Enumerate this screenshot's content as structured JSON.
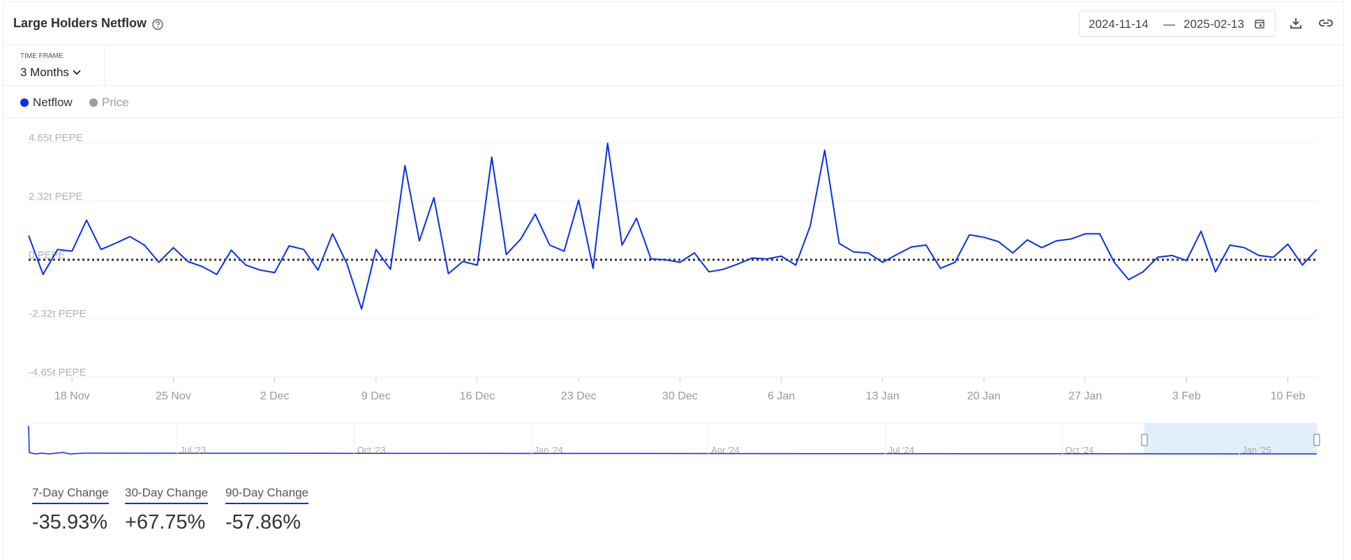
{
  "header": {
    "title": "Large Holders Netflow",
    "date_from": "2024-11-14",
    "date_separator": "—",
    "date_to": "2025-02-13"
  },
  "time_frame": {
    "label": "TIME FRAME",
    "value": "3 Months"
  },
  "chart_data": {
    "type": "line",
    "series": [
      {
        "name": "Netflow",
        "color": "#0a2ee8",
        "values": [
          0.96,
          -0.58,
          0.41,
          0.34,
          1.57,
          0.41,
          0.65,
          0.92,
          0.58,
          -0.1,
          0.48,
          -0.07,
          -0.27,
          -0.58,
          0.38,
          -0.21,
          -0.41,
          -0.51,
          0.55,
          0.41,
          -0.41,
          1.03,
          -0.17,
          -1.95,
          0.41,
          -0.38,
          3.73,
          0.75,
          2.46,
          -0.55,
          -0.07,
          -0.21,
          4.07,
          0.21,
          0.82,
          1.81,
          0.58,
          0.34,
          2.36,
          -0.34,
          4.62,
          0.58,
          1.64,
          0.03,
          0,
          -0.1,
          0.27,
          -0.48,
          -0.38,
          -0.17,
          0.07,
          0.03,
          0.14,
          -0.21,
          1.33,
          4.34,
          0.65,
          0.31,
          0.27,
          -0.1,
          0.21,
          0.51,
          0.58,
          -0.34,
          -0.1,
          0.99,
          0.89,
          0.72,
          0.27,
          0.79,
          0.48,
          0.75,
          0.82,
          1.03,
          1.03,
          -0.1,
          -0.79,
          -0.48,
          0.1,
          0.17,
          -0.03,
          1.13,
          -0.48,
          0.58,
          0.48,
          0.17,
          0.1,
          0.62,
          -0.21,
          0.41
        ]
      }
    ],
    "inactive_legend": {
      "name": "Price",
      "color": "#9e9e9e"
    },
    "categories": [
      null,
      null,
      null,
      "18 Nov",
      null,
      null,
      null,
      null,
      null,
      null,
      "25 Nov",
      null,
      null,
      null,
      null,
      null,
      null,
      "2 Dec",
      null,
      null,
      null,
      null,
      null,
      null,
      "9 Dec",
      null,
      null,
      null,
      null,
      null,
      null,
      "16 Dec",
      null,
      null,
      null,
      null,
      null,
      null,
      "23 Dec",
      null,
      null,
      null,
      null,
      null,
      null,
      "30 Dec",
      null,
      null,
      null,
      null,
      null,
      null,
      "6 Jan",
      null,
      null,
      null,
      null,
      null,
      null,
      "13 Jan",
      null,
      null,
      null,
      null,
      null,
      null,
      "20 Jan",
      null,
      null,
      null,
      null,
      null,
      null,
      "27 Jan",
      null,
      null,
      null,
      null,
      null,
      null,
      "3 Feb",
      null,
      null,
      null,
      null,
      null,
      null,
      "10 Feb",
      null,
      null
    ],
    "ylim": [
      -4.65,
      4.65
    ],
    "yticks": [
      {
        "value": 4.65,
        "label": "4.65t PEPE"
      },
      {
        "value": 2.32,
        "label": "2.32t PEPE"
      },
      {
        "value": 0,
        "label": "0 PEPE"
      },
      {
        "value": -2.32,
        "label": "-2.32t PEPE"
      },
      {
        "value": -4.65,
        "label": "-4.65t PEPE"
      }
    ],
    "grid": true,
    "navigator_labels": [
      "Jul '23",
      "Oct '23",
      "Jan '24",
      "Apr '24",
      "Jul '24",
      "Oct '24",
      "Jan '25"
    ]
  },
  "stats": [
    {
      "label": "7-Day Change",
      "value": "-35.93%"
    },
    {
      "label": "30-Day Change",
      "value": "+67.75%"
    },
    {
      "label": "90-Day Change",
      "value": "-57.86%"
    }
  ]
}
